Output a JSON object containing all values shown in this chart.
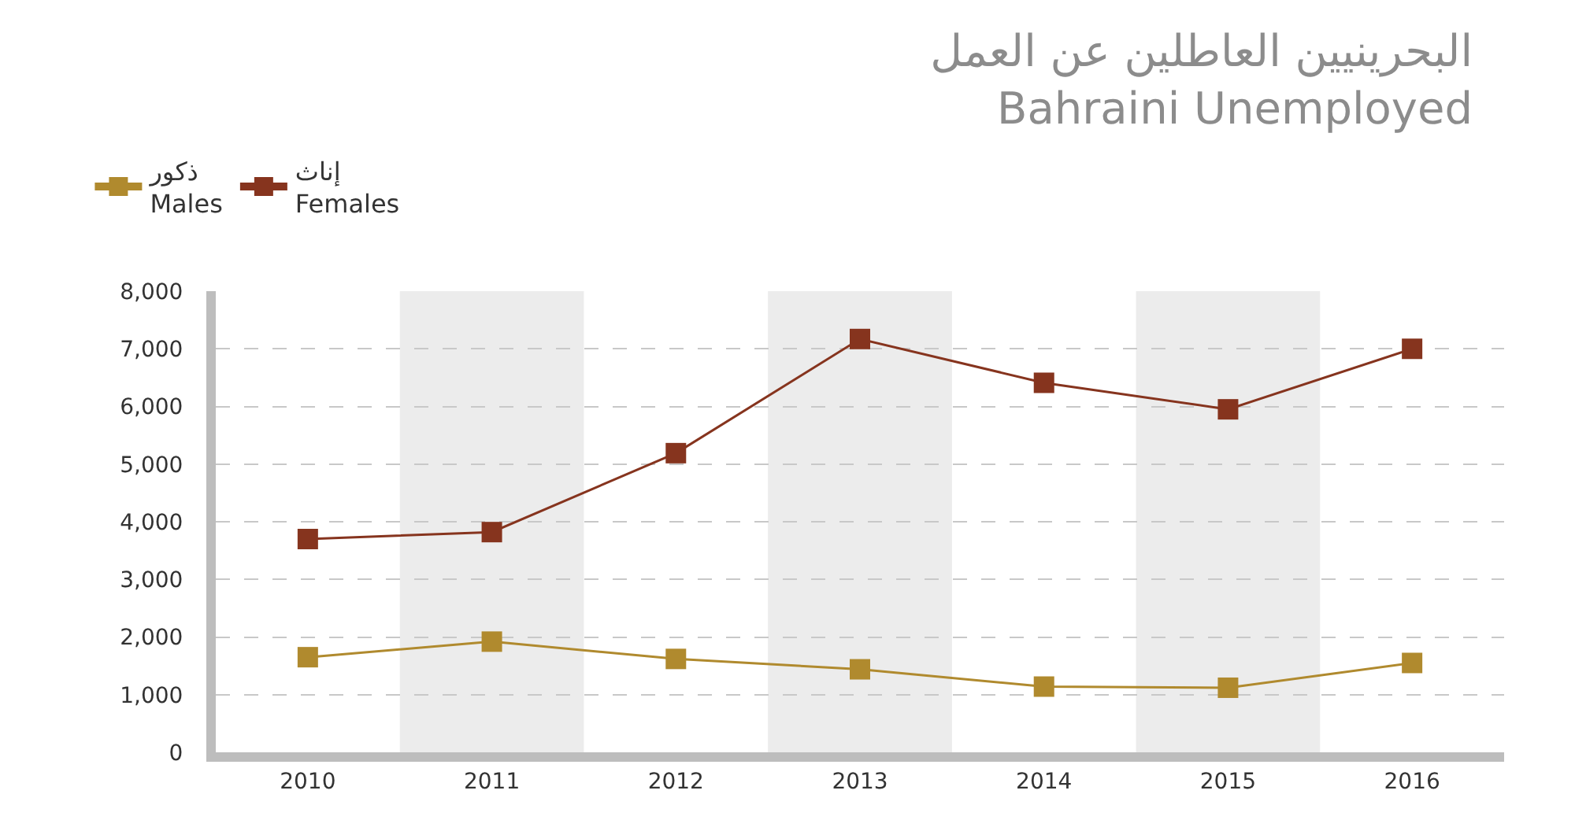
{
  "chart_data": {
    "type": "line",
    "title": "البحرينيين العاطلين عن العمل\nBahraini Unemployed",
    "categories": [
      "2010",
      "2011",
      "2012",
      "2013",
      "2014",
      "2015",
      "2016"
    ],
    "series": [
      {
        "name": "ذكور\nMales",
        "color": "#b08a2e",
        "values": [
          1650,
          1920,
          1620,
          1440,
          1140,
          1120,
          1550
        ]
      },
      {
        "name": "إناث\nFemales",
        "color": "#86341e",
        "values": [
          3700,
          3820,
          5190,
          7170,
          6410,
          5950,
          7000
        ]
      }
    ],
    "bands": [
      {
        "axis": "x",
        "from": "2011",
        "to": "2011",
        "color": "#ececec"
      },
      {
        "axis": "x",
        "from": "2013",
        "to": "2013",
        "color": "#ececec"
      },
      {
        "axis": "x",
        "from": "2015",
        "to": "2015",
        "color": "#ececec"
      }
    ],
    "ylim": [
      0,
      8000
    ],
    "yticks": [
      {
        "value": 0,
        "label": "0"
      },
      {
        "value": 1000,
        "label": "1,000"
      },
      {
        "value": 2000,
        "label": "2,000"
      },
      {
        "value": 3000,
        "label": "3,000"
      },
      {
        "value": 4000,
        "label": "4,000"
      },
      {
        "value": 5000,
        "label": "5,000"
      },
      {
        "value": 6000,
        "label": "6,000"
      },
      {
        "value": 7000,
        "label": "7,000"
      },
      {
        "value": 8000,
        "label": "8,000"
      }
    ],
    "grid": "y",
    "legend": "top left",
    "marker": "square",
    "line_style": "solid"
  }
}
